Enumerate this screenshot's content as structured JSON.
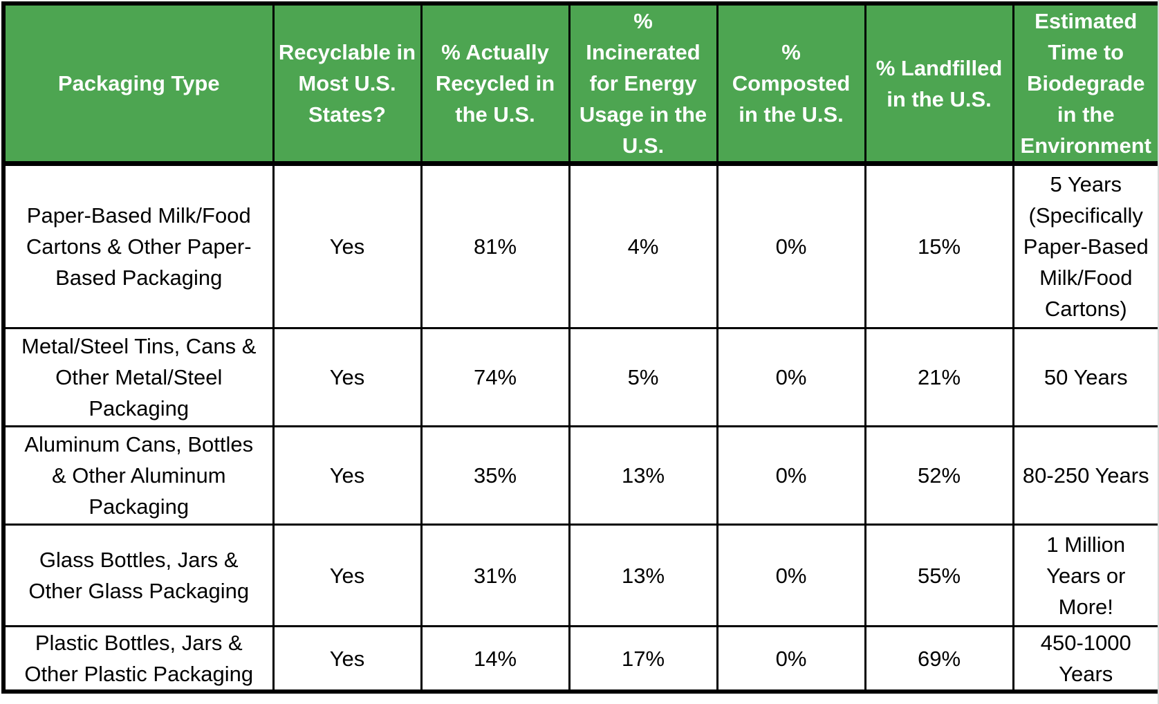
{
  "table": {
    "accent_color": "#4DA551",
    "header_text_color": "#ffffff",
    "body_text_color": "#000000",
    "columns": [
      {
        "label": "Packaging Type"
      },
      {
        "label": "Recyclable in\nMost U.S.\nStates?"
      },
      {
        "label": "% Actually\nRecycled in\nthe U.S."
      },
      {
        "label": "%\nIncinerated\nfor Energy\nUsage in the\nU.S."
      },
      {
        "label": "%\nComposted\nin the U.S."
      },
      {
        "label": "% Landfilled\nin the U.S."
      },
      {
        "label": "Estimated\nTime to\nBiodegrade\nin the\nEnvironment"
      }
    ],
    "rows": [
      {
        "packaging_type": "Paper-Based Milk/Food\nCartons & Other Paper-\nBased Packaging",
        "recyclable": "Yes",
        "recycled": "81%",
        "incinerated": "4%",
        "composted": "0%",
        "landfilled": "15%",
        "biodegrade_time": "5 Years\n(Specifically\nPaper-Based\nMilk/Food\nCartons)"
      },
      {
        "packaging_type": "Metal/Steel Tins, Cans &\nOther Metal/Steel\nPackaging",
        "recyclable": "Yes",
        "recycled": "74%",
        "incinerated": "5%",
        "composted": "0%",
        "landfilled": "21%",
        "biodegrade_time": "50 Years"
      },
      {
        "packaging_type": "Aluminum Cans, Bottles\n& Other Aluminum\nPackaging",
        "recyclable": "Yes",
        "recycled": "35%",
        "incinerated": "13%",
        "composted": "0%",
        "landfilled": "52%",
        "biodegrade_time": "80-250 Years"
      },
      {
        "packaging_type": "Glass Bottles, Jars &\nOther Glass Packaging",
        "recyclable": "Yes",
        "recycled": "31%",
        "incinerated": "13%",
        "composted": "0%",
        "landfilled": "55%",
        "biodegrade_time": "1 Million\nYears or\nMore!"
      },
      {
        "packaging_type": "Plastic Bottles, Jars &\nOther Plastic Packaging",
        "recyclable": "Yes",
        "recycled": "14%",
        "incinerated": "17%",
        "composted": "0%",
        "landfilled": "69%",
        "biodegrade_time": "450-1000\nYears"
      }
    ]
  }
}
